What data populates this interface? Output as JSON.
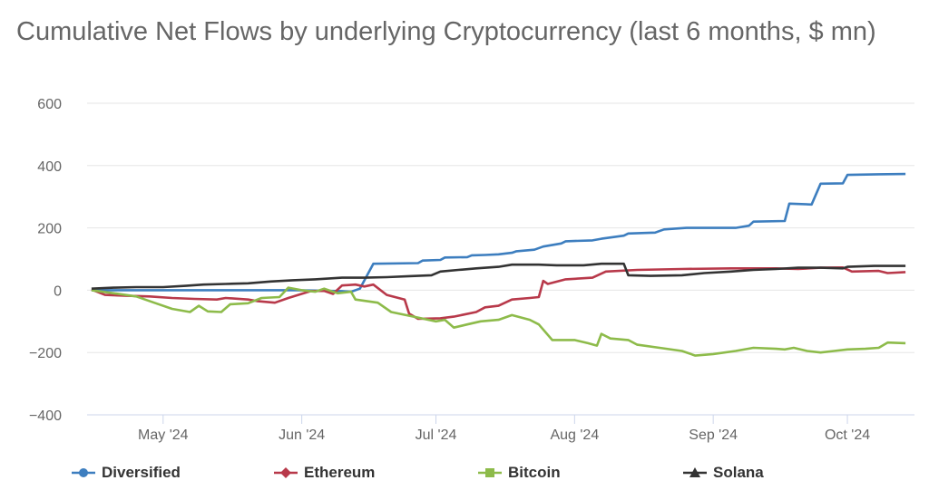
{
  "chart_data": {
    "type": "line",
    "title": "Cumulative Net Flows by underlying Cryptocurrency (last 6 months, $ mn)",
    "xlabel": "",
    "ylabel": "",
    "ylim": [
      -400,
      600
    ],
    "y_ticks": [
      600,
      400,
      200,
      0,
      -200,
      -400
    ],
    "y_tick_labels": [
      "600",
      "400",
      "200",
      "0",
      "−200",
      "−400"
    ],
    "x_range": [
      "2024-04-14",
      "2024-10-16"
    ],
    "x_ticks": [
      {
        "date": "2024-05-01",
        "label": "May '24"
      },
      {
        "date": "2024-06-01",
        "label": "Jun '24"
      },
      {
        "date": "2024-07-01",
        "label": "Jul '24"
      },
      {
        "date": "2024-08-01",
        "label": "Aug '24"
      },
      {
        "date": "2024-09-01",
        "label": "Sep '24"
      },
      {
        "date": "2024-10-01",
        "label": "Oct '24"
      }
    ],
    "grid": true,
    "legend_position": "bottom",
    "series": [
      {
        "name": "Diversified",
        "color": "#3d7ebf",
        "marker": "circle",
        "points": [
          [
            "2024-04-15",
            0
          ],
          [
            "2024-05-15",
            0
          ],
          [
            "2024-05-31",
            0
          ],
          [
            "2024-06-10",
            -3
          ],
          [
            "2024-06-12",
            -5
          ],
          [
            "2024-06-14",
            5
          ],
          [
            "2024-06-17",
            85
          ],
          [
            "2024-06-27",
            87
          ],
          [
            "2024-06-28",
            95
          ],
          [
            "2024-07-02",
            97
          ],
          [
            "2024-07-03",
            105
          ],
          [
            "2024-07-08",
            106
          ],
          [
            "2024-07-09",
            112
          ],
          [
            "2024-07-12",
            113
          ],
          [
            "2024-07-15",
            115
          ],
          [
            "2024-07-18",
            120
          ],
          [
            "2024-07-19",
            125
          ],
          [
            "2024-07-23",
            130
          ],
          [
            "2024-07-25",
            140
          ],
          [
            "2024-07-29",
            150
          ],
          [
            "2024-07-30",
            157
          ],
          [
            "2024-08-05",
            160
          ],
          [
            "2024-08-07",
            165
          ],
          [
            "2024-08-12",
            175
          ],
          [
            "2024-08-13",
            182
          ],
          [
            "2024-08-19",
            185
          ],
          [
            "2024-08-21",
            195
          ],
          [
            "2024-08-26",
            200
          ],
          [
            "2024-09-06",
            200
          ],
          [
            "2024-09-09",
            207
          ],
          [
            "2024-09-10",
            220
          ],
          [
            "2024-09-17",
            222
          ],
          [
            "2024-09-18",
            278
          ],
          [
            "2024-09-23",
            275
          ],
          [
            "2024-09-25",
            342
          ],
          [
            "2024-09-30",
            343
          ],
          [
            "2024-10-01",
            370
          ],
          [
            "2024-10-08",
            372
          ],
          [
            "2024-10-14",
            373
          ]
        ]
      },
      {
        "name": "Ethereum",
        "color": "#b8394a",
        "marker": "diamond",
        "points": [
          [
            "2024-04-15",
            2
          ],
          [
            "2024-04-18",
            -15
          ],
          [
            "2024-04-23",
            -18
          ],
          [
            "2024-04-28",
            -20
          ],
          [
            "2024-05-03",
            -25
          ],
          [
            "2024-05-08",
            -28
          ],
          [
            "2024-05-13",
            -30
          ],
          [
            "2024-05-15",
            -25
          ],
          [
            "2024-05-20",
            -30
          ],
          [
            "2024-05-22",
            -35
          ],
          [
            "2024-05-26",
            -40
          ],
          [
            "2024-05-29",
            -25
          ],
          [
            "2024-06-03",
            -3
          ],
          [
            "2024-06-06",
            -2
          ],
          [
            "2024-06-08",
            -12
          ],
          [
            "2024-06-10",
            15
          ],
          [
            "2024-06-13",
            18
          ],
          [
            "2024-06-15",
            12
          ],
          [
            "2024-06-17",
            18
          ],
          [
            "2024-06-20",
            -15
          ],
          [
            "2024-06-24",
            -30
          ],
          [
            "2024-06-25",
            -75
          ],
          [
            "2024-06-27",
            -92
          ],
          [
            "2024-07-02",
            -90
          ],
          [
            "2024-07-05",
            -85
          ],
          [
            "2024-07-10",
            -70
          ],
          [
            "2024-07-12",
            -55
          ],
          [
            "2024-07-15",
            -50
          ],
          [
            "2024-07-18",
            -30
          ],
          [
            "2024-07-22",
            -25
          ],
          [
            "2024-07-24",
            -22
          ],
          [
            "2024-07-25",
            30
          ],
          [
            "2024-07-26",
            20
          ],
          [
            "2024-07-30",
            35
          ],
          [
            "2024-08-05",
            40
          ],
          [
            "2024-08-08",
            60
          ],
          [
            "2024-08-15",
            65
          ],
          [
            "2024-08-25",
            68
          ],
          [
            "2024-09-05",
            70
          ],
          [
            "2024-09-15",
            70
          ],
          [
            "2024-09-20",
            68
          ],
          [
            "2024-09-25",
            72
          ],
          [
            "2024-09-30",
            73
          ],
          [
            "2024-10-02",
            60
          ],
          [
            "2024-10-08",
            62
          ],
          [
            "2024-10-10",
            55
          ],
          [
            "2024-10-14",
            58
          ]
        ]
      },
      {
        "name": "Bitcoin",
        "color": "#8dbb4a",
        "marker": "square",
        "points": [
          [
            "2024-04-15",
            0
          ],
          [
            "2024-04-20",
            -10
          ],
          [
            "2024-04-25",
            -20
          ],
          [
            "2024-04-29",
            -40
          ],
          [
            "2024-05-03",
            -60
          ],
          [
            "2024-05-07",
            -70
          ],
          [
            "2024-05-09",
            -50
          ],
          [
            "2024-05-11",
            -68
          ],
          [
            "2024-05-14",
            -70
          ],
          [
            "2024-05-16",
            -45
          ],
          [
            "2024-05-20",
            -42
          ],
          [
            "2024-05-23",
            -25
          ],
          [
            "2024-05-27",
            -22
          ],
          [
            "2024-05-29",
            8
          ],
          [
            "2024-06-01",
            0
          ],
          [
            "2024-06-04",
            -5
          ],
          [
            "2024-06-06",
            5
          ],
          [
            "2024-06-09",
            -10
          ],
          [
            "2024-06-12",
            -5
          ],
          [
            "2024-06-13",
            -30
          ],
          [
            "2024-06-18",
            -40
          ],
          [
            "2024-06-21",
            -70
          ],
          [
            "2024-06-26",
            -85
          ],
          [
            "2024-07-01",
            -100
          ],
          [
            "2024-07-03",
            -95
          ],
          [
            "2024-07-05",
            -120
          ],
          [
            "2024-07-08",
            -110
          ],
          [
            "2024-07-11",
            -100
          ],
          [
            "2024-07-15",
            -95
          ],
          [
            "2024-07-18",
            -80
          ],
          [
            "2024-07-22",
            -95
          ],
          [
            "2024-07-24",
            -110
          ],
          [
            "2024-07-27",
            -160
          ],
          [
            "2024-08-01",
            -160
          ],
          [
            "2024-08-04",
            -170
          ],
          [
            "2024-08-06",
            -178
          ],
          [
            "2024-08-07",
            -140
          ],
          [
            "2024-08-09",
            -155
          ],
          [
            "2024-08-13",
            -160
          ],
          [
            "2024-08-15",
            -175
          ],
          [
            "2024-08-20",
            -185
          ],
          [
            "2024-08-25",
            -195
          ],
          [
            "2024-08-28",
            -210
          ],
          [
            "2024-09-01",
            -205
          ],
          [
            "2024-09-06",
            -195
          ],
          [
            "2024-09-10",
            -185
          ],
          [
            "2024-09-15",
            -188
          ],
          [
            "2024-09-17",
            -190
          ],
          [
            "2024-09-19",
            -185
          ],
          [
            "2024-09-22",
            -195
          ],
          [
            "2024-09-25",
            -200
          ],
          [
            "2024-09-28",
            -195
          ],
          [
            "2024-10-01",
            -190
          ],
          [
            "2024-10-05",
            -188
          ],
          [
            "2024-10-08",
            -185
          ],
          [
            "2024-10-10",
            -168
          ],
          [
            "2024-10-14",
            -170
          ]
        ]
      },
      {
        "name": "Solana",
        "color": "#333333",
        "marker": "triangle",
        "points": [
          [
            "2024-04-15",
            5
          ],
          [
            "2024-04-20",
            8
          ],
          [
            "2024-04-25",
            10
          ],
          [
            "2024-05-01",
            10
          ],
          [
            "2024-05-06",
            14
          ],
          [
            "2024-05-10",
            18
          ],
          [
            "2024-05-15",
            20
          ],
          [
            "2024-05-20",
            22
          ],
          [
            "2024-05-25",
            28
          ],
          [
            "2024-05-30",
            32
          ],
          [
            "2024-06-04",
            35
          ],
          [
            "2024-06-10",
            40
          ],
          [
            "2024-06-15",
            40
          ],
          [
            "2024-06-20",
            42
          ],
          [
            "2024-06-25",
            45
          ],
          [
            "2024-06-30",
            48
          ],
          [
            "2024-07-02",
            60
          ],
          [
            "2024-07-06",
            65
          ],
          [
            "2024-07-10",
            70
          ],
          [
            "2024-07-15",
            75
          ],
          [
            "2024-07-18",
            82
          ],
          [
            "2024-07-24",
            82
          ],
          [
            "2024-07-28",
            80
          ],
          [
            "2024-08-03",
            80
          ],
          [
            "2024-08-07",
            85
          ],
          [
            "2024-08-12",
            85
          ],
          [
            "2024-08-13",
            48
          ],
          [
            "2024-08-18",
            46
          ],
          [
            "2024-08-25",
            48
          ],
          [
            "2024-08-30",
            55
          ],
          [
            "2024-09-05",
            60
          ],
          [
            "2024-09-10",
            65
          ],
          [
            "2024-09-15",
            68
          ],
          [
            "2024-09-20",
            72
          ],
          [
            "2024-09-25",
            72
          ],
          [
            "2024-09-30",
            70
          ],
          [
            "2024-10-01",
            75
          ],
          [
            "2024-10-07",
            78
          ],
          [
            "2024-10-14",
            78
          ]
        ]
      }
    ]
  }
}
